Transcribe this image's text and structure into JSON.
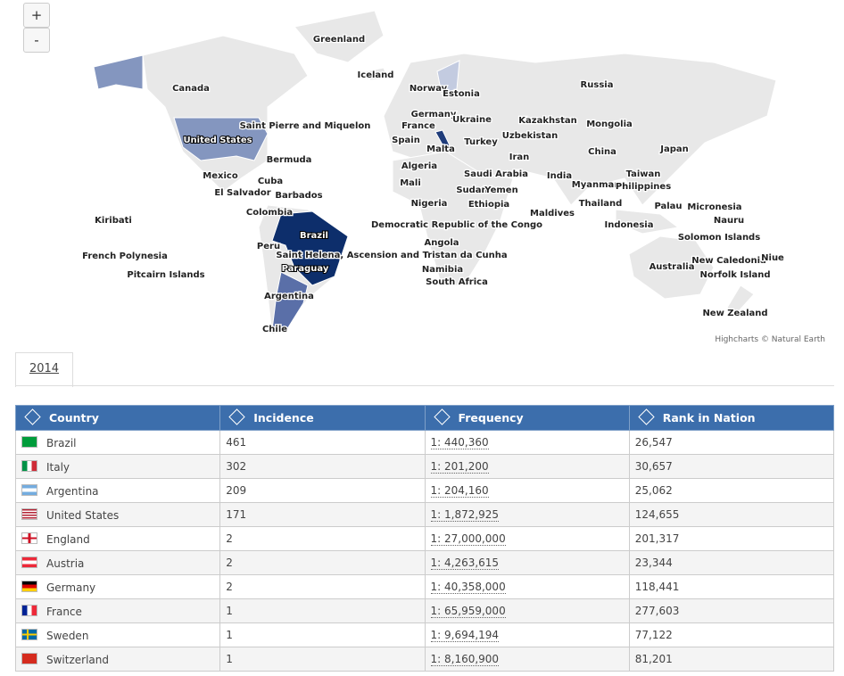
{
  "map": {
    "zoom_in": "+",
    "zoom_out": "-",
    "credit": "Highcharts © Natural Earth",
    "labels": [
      "Greenland",
      "Iceland",
      "Canada",
      "Russia",
      "Norway",
      "Estonia",
      "Germany",
      "Ukraine",
      "France",
      "Kazakhstan",
      "Mongolia",
      "Spain",
      "Malta",
      "Turkey",
      "Uzbekistan",
      "United States",
      "Saint Pierre and Miquelon",
      "China",
      "Japan",
      "Bermuda",
      "Iran",
      "Algeria",
      "Mexico",
      "Cuba",
      "Saudi Arabia",
      "India",
      "Taiwan",
      "Mali",
      "El Salvador",
      "Barbados",
      "Myanmar",
      "Philippines",
      "Sudan",
      "Yemen",
      "Nigeria",
      "Ethiopia",
      "Thailand",
      "Palau",
      "Micronesia",
      "Colombia",
      "Maldives",
      "Kiribati",
      "Brazil",
      "Democratic Republic of the Congo",
      "Indonesia",
      "Nauru",
      "Solomon Islands",
      "Peru",
      "Angola",
      "French Polynesia",
      "Saint Helena, Ascension and Tristan da Cunha",
      "New Caledonia",
      "Niue",
      "Australia",
      "Paraguay",
      "Namibia",
      "Norfolk Island",
      "Pitcairn Islands",
      "South Africa",
      "Argentina",
      "New Zealand",
      "Chile"
    ]
  },
  "tabs": [
    "2014"
  ],
  "table": {
    "headers": [
      "Country",
      "Incidence",
      "Frequency",
      "Rank in Nation"
    ],
    "rows": [
      [
        "Brazil",
        461,
        "1: 440,360",
        "26,547"
      ],
      [
        "Italy",
        302,
        "1: 201,200",
        "30,657"
      ],
      [
        "Argentina",
        209,
        "1: 204,160",
        "25,062"
      ],
      [
        "United States",
        171,
        "1: 1,872,925",
        "124,655"
      ],
      [
        "England",
        2,
        "1: 27,000,000",
        "201,317"
      ],
      [
        "Austria",
        2,
        "1: 4,263,615",
        "23,344"
      ],
      [
        "Germany",
        2,
        "1: 40,358,000",
        "118,441"
      ],
      [
        "France",
        1,
        "1: 65,959,000",
        "277,603"
      ],
      [
        "Sweden",
        1,
        "1: 9,694,194",
        "77,122"
      ],
      [
        "Switzerland",
        1,
        "1: 8,160,900",
        "81,201"
      ]
    ]
  }
}
